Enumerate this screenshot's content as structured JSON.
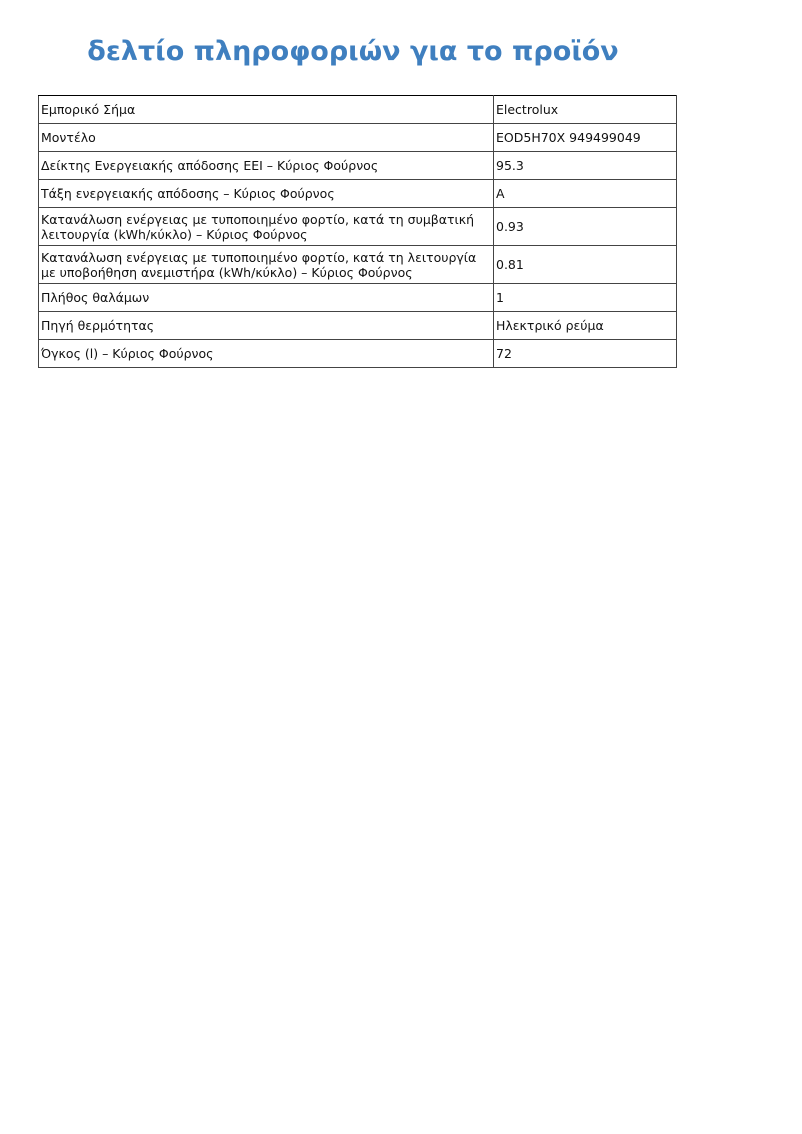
{
  "title": "δελτίο πληροφοριών για το προϊόν",
  "accent_color": "#3f7fbf",
  "rows": [
    {
      "label": "Εμπορικό Σήμα",
      "value": "Electrolux"
    },
    {
      "label": "Μοντέλο",
      "value": "EOD5H70X 949499049"
    },
    {
      "label": "Δείκτης Ενεργειακής απόδοσης EEI – Κύριος Φούρνος",
      "value": "95.3"
    },
    {
      "label": "Τάξη ενεργειακής απόδοσης – Κύριος Φούρνος",
      "value": "A"
    },
    {
      "label": "Κατανάλωση ενέργειας με τυποποιημένο φορτίο, κατά τη συμβατική λειτουργία (kWh/κύκλο) – Κύριος Φούρνος",
      "value": "0.93"
    },
    {
      "label": "Κατανάλωση ενέργειας με τυποποιημένο φορτίο, κατά τη λειτουργία με υποβοήθηση ανεμιστήρα (kWh/κύκλο) – Κύριος Φούρνος",
      "value": "0.81"
    },
    {
      "label": "Πλήθος θαλάμων",
      "value": "1"
    },
    {
      "label": "Πηγή θερμότητας",
      "value": "Ηλεκτρικό ρεύμα"
    },
    {
      "label": "Όγκος (l) – Κύριος Φούρνος",
      "value": "72"
    }
  ]
}
